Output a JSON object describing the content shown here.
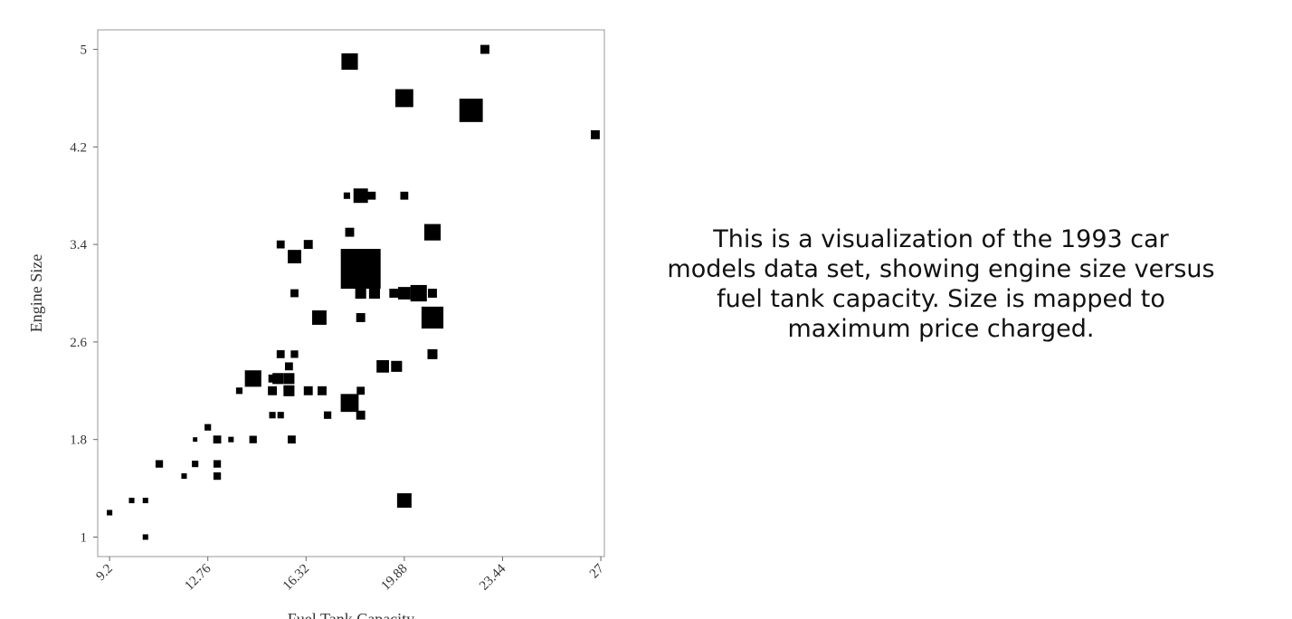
{
  "chart_data": {
    "type": "scatter",
    "marker": "square",
    "color": "#000000",
    "xlabel": "Fuel Tank Capacity",
    "ylabel": "Engine Size",
    "annotation": "This is a visualization of the 1993 car models data set, showing engine size versus fuel tank capacity. Size is mapped to maximum price charged.",
    "xlim": [
      8.77,
      27.13
    ],
    "ylim": [
      0.84,
      5.16
    ],
    "xticks": [
      9.2,
      12.76,
      16.32,
      19.88,
      23.44,
      27
    ],
    "yticks": [
      1,
      1.8,
      2.6,
      3.4,
      4.2,
      5
    ],
    "x": [
      9.2,
      10.0,
      10.5,
      10.5,
      11.0,
      11.9,
      12.3,
      12.3,
      12.76,
      13.1,
      13.1,
      13.1,
      13.6,
      13.9,
      14.4,
      14.4,
      15.1,
      15.1,
      15.1,
      15.4,
      15.4,
      15.4,
      15.3,
      15.7,
      15.7,
      15.7,
      15.8,
      15.9,
      15.9,
      15.9,
      16.4,
      16.4,
      16.8,
      16.9,
      17.1,
      17.9,
      17.9,
      17.9,
      17.8,
      18.3,
      18.7,
      18.3,
      18.3,
      18.3,
      18.3,
      18.3,
      18.8,
      19.1,
      19.6,
      19.5,
      19.88,
      19.88,
      19.88,
      19.88,
      20.4,
      20.9,
      20.9,
      20.9,
      20.9,
      22.3,
      22.8,
      26.8
    ],
    "values": [
      1.2,
      1.3,
      1.3,
      1.0,
      1.6,
      1.5,
      1.6,
      1.8,
      1.9,
      1.8,
      1.6,
      1.5,
      1.8,
      2.2,
      2.3,
      1.8,
      2.2,
      2.3,
      2.0,
      2.0,
      2.5,
      3.4,
      2.3,
      2.3,
      2.4,
      2.2,
      1.8,
      2.5,
      3.3,
      3.0,
      3.4,
      2.2,
      2.8,
      2.2,
      2.0,
      4.9,
      3.5,
      2.1,
      3.8,
      3.8,
      3.8,
      3.2,
      3.0,
      2.8,
      2.2,
      2.0,
      3.0,
      2.4,
      2.4,
      3.0,
      3.0,
      4.6,
      1.3,
      3.8,
      3.0,
      3.0,
      3.5,
      2.8,
      2.5,
      4.5,
      5.0,
      4.3
    ],
    "sizes": [
      11,
      11,
      11,
      11,
      15,
      11,
      13,
      9,
      13,
      16,
      15,
      15,
      11,
      13,
      33,
      15,
      18,
      16,
      13,
      13,
      16,
      16,
      22,
      22,
      16,
      22,
      16,
      15,
      27,
      16,
      18,
      18,
      29,
      18,
      15,
      33,
      18,
      36,
      13,
      29,
      16,
      80,
      22,
      18,
      16,
      18,
      22,
      25,
      22,
      18,
      25,
      36,
      29,
      16,
      33,
      18,
      33,
      44,
      20,
      47,
      18,
      18
    ]
  }
}
